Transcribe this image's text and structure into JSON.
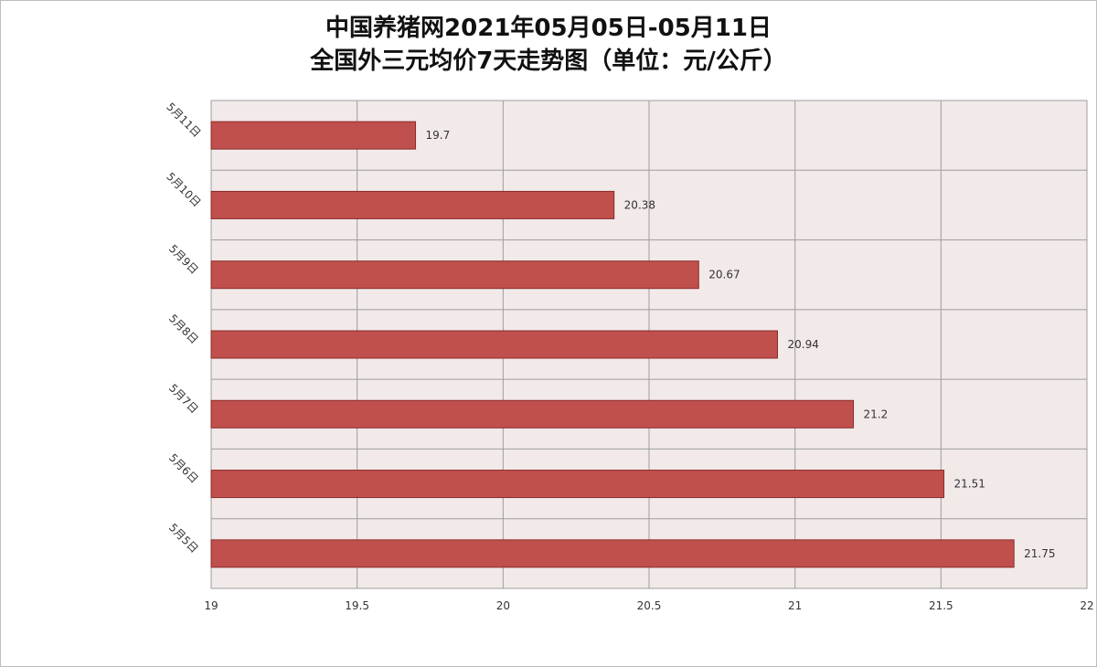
{
  "chart_data": {
    "type": "bar",
    "orientation": "horizontal",
    "title": "中国养猪网2021年05月05日-05月11日",
    "subtitle": "全国外三元均价7天走势图（单位：元/公斤）",
    "categories": [
      "5月11日",
      "5月10日",
      "5月9日",
      "5月8日",
      "5月7日",
      "5月6日",
      "5月5日"
    ],
    "values": [
      19.7,
      20.38,
      20.67,
      20.94,
      21.2,
      21.51,
      21.75
    ],
    "data_labels": [
      "19.7",
      "20.38",
      "20.67",
      "20.94",
      "21.2",
      "21.51",
      "21.75"
    ],
    "x_ticks": [
      "19",
      "19.5",
      "20",
      "20.5",
      "21",
      "21.5",
      "22"
    ],
    "xlim": [
      19,
      22
    ],
    "xlabel": "",
    "ylabel": "",
    "grid": true,
    "legend": "none",
    "colors": {
      "bar": "#c0504d",
      "bar_border": "#8b2c2a",
      "plot_background": "#f2e9e9",
      "grid": "#9e9e9e"
    }
  }
}
